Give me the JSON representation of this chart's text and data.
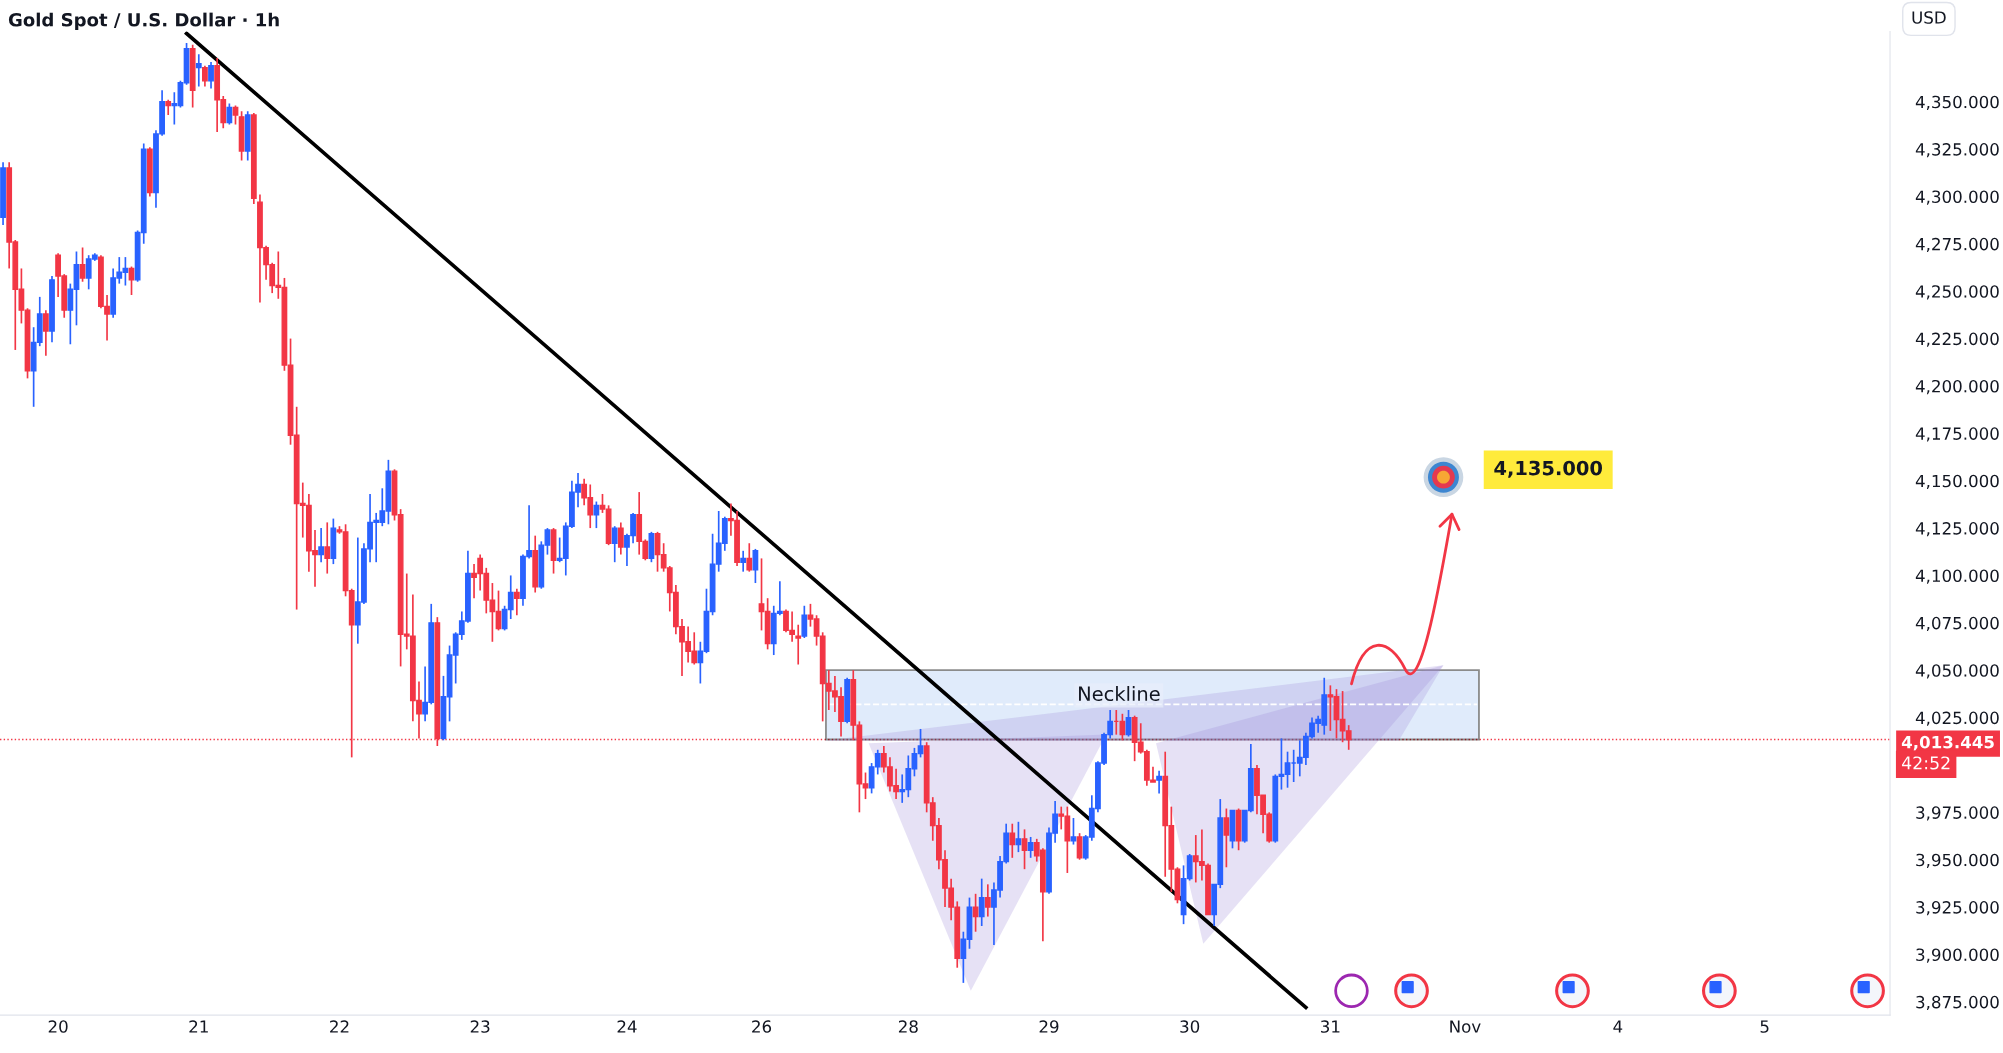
{
  "chart_data": {
    "type": "candlestick",
    "title": "Gold Spot / U.S. Dollar · 1h",
    "ylabel": "USD",
    "colors": [
      "#2962ff",
      "#f23645",
      "#f23645",
      "#f23645",
      "#f23645",
      "#2962ff",
      "#2962ff",
      "#f23645",
      "#2962ff",
      "#f23645",
      "#f23645",
      "#2962ff",
      "#2962ff",
      "#f23645",
      "#2962ff",
      "#2962ff",
      "#f23645",
      "#f23645",
      "#2962ff",
      "#2962ff",
      "#2962ff",
      "#f23645",
      "#2962ff",
      "#2962ff",
      "#f23645",
      "#2962ff",
      "#2962ff",
      "#f23645",
      "#2962ff",
      "#2962ff",
      "#2962ff",
      "#f23645",
      "#2962ff",
      "#f23645",
      "#2962ff",
      "#f23645",
      "#f23645",
      "#2962ff",
      "#f23645",
      "#f23645",
      "#2962ff",
      "#f23645",
      "#f23645",
      "#f23645",
      "#f23645",
      "#f23645",
      "#f23645",
      "#f23645",
      "#f23645",
      "#f23645",
      "#f23645",
      "#f23645",
      "#2962ff",
      "#f23645",
      "#2962ff",
      "#f23645",
      "#f23645",
      "#f23645",
      "#2962ff",
      "#2962ff",
      "#2962ff",
      "#2962ff",
      "#2962ff",
      "#2962ff",
      "#f23645",
      "#f23645",
      "#f23645",
      "#f23645",
      "#f23645",
      "#2962ff",
      "#2962ff",
      "#f23645",
      "#2962ff",
      "#2962ff",
      "#2962ff",
      "#2962ff",
      "#2962ff",
      "#f23645",
      "#f23645",
      "#f23645",
      "#f23645",
      "#f23645",
      "#2962ff",
      "#2962ff",
      "#f23645",
      "#2962ff",
      "#2962ff",
      "#f23645",
      "#2962ff",
      "#2962ff",
      "#f23645",
      "#2962ff",
      "#2962ff",
      "#2962ff",
      "#2962ff",
      "#f23645",
      "#f23645",
      "#2962ff",
      "#f23645",
      "#f23645",
      "#2962ff",
      "#f23645",
      "#2962ff",
      "#2962ff",
      "#f23645",
      "#f23645",
      "#2962ff",
      "#f23645",
      "#f23645",
      "#f23645",
      "#f23645",
      "#f23645",
      "#f23645",
      "#f23645",
      "#2962ff",
      "#2962ff",
      "#2962ff",
      "#2962ff",
      "#2962ff",
      "#f23645",
      "#f23645",
      "#2962ff",
      "#f23645",
      "#2962ff",
      "#f23645",
      "#f23645",
      "#2962ff",
      "#2962ff",
      "#f23645",
      "#f23645",
      "#f23645",
      "#2962ff",
      "#f23645",
      "#f23645",
      "#f23645",
      "#f23645",
      "#f23645",
      "#f23645",
      "#2962ff",
      "#f23645",
      "#f23645",
      "#f23645",
      "#2962ff",
      "#2962ff",
      "#f23645",
      "#f23645",
      "#f23645",
      "#2962ff",
      "#2962ff",
      "#2962ff",
      "#2962ff",
      "#f23645",
      "#f23645",
      "#f23645",
      "#f23645",
      "#f23645",
      "#f23645",
      "#2962ff",
      "#2962ff",
      "#f23645",
      "#2962ff",
      "#f23645",
      "#2962ff",
      "#2962ff",
      "#2962ff",
      "#f23645",
      "#2962ff",
      "#f23645",
      "#2962ff",
      "#f23645",
      "#f23645",
      "#2962ff",
      "#2962ff",
      "#f23645",
      "#f23645",
      "#2962ff",
      "#f23645",
      "#2962ff",
      "#2962ff",
      "#2962ff",
      "#2962ff",
      "#2962ff",
      "#f23645",
      "#f23645",
      "#2962ff",
      "#f23645",
      "#f23645",
      "#f23645",
      "#f23645",
      "#2962ff",
      "#f23645",
      "#f23645",
      "#f23645",
      "#2962ff",
      "#2962ff",
      "#f23645",
      "#f23645",
      "#f23645",
      "#2962ff",
      "#2962ff",
      "#f23645",
      "#2962ff",
      "#f23645",
      "#2962ff",
      "#2962ff",
      "#f23645",
      "#f23645",
      "#f23645",
      "#2962ff",
      "#2962ff",
      "#2962ff",
      "#2962ff",
      "#2962ff",
      "#2962ff",
      "#2962ff",
      "#2962ff",
      "#2962ff",
      "#f23645",
      "#f23645",
      "#f23645",
      "#f23645",
      null,
      null,
      null,
      null,
      null,
      null,
      null,
      null,
      null,
      null,
      null,
      null,
      null,
      null,
      null,
      null,
      null,
      null,
      null,
      null,
      null,
      null,
      null,
      null,
      null,
      null,
      null,
      null,
      null,
      null,
      null,
      null,
      null,
      null,
      null,
      null,
      null,
      null,
      null,
      null,
      null,
      null,
      null,
      null,
      null,
      null,
      null,
      null,
      null,
      null,
      null,
      null,
      null,
      null,
      null,
      null,
      null,
      null,
      null,
      null,
      null,
      null,
      null,
      null,
      null,
      null,
      null,
      null,
      null,
      null,
      null,
      null,
      null,
      null,
      null,
      null,
      null,
      null,
      null,
      null,
      null,
      null,
      null,
      null,
      null,
      null,
      null,
      null
    ],
    "categories": [
      null,
      null,
      null,
      null,
      null,
      null,
      null,
      null,
      null,
      "20",
      null,
      null,
      null,
      null,
      null,
      null,
      null,
      null,
      null,
      null,
      null,
      null,
      null,
      null,
      null,
      null,
      null,
      null,
      null,
      null,
      null,
      null,
      "21",
      null,
      null,
      null,
      null,
      null,
      null,
      null,
      null,
      null,
      null,
      null,
      null,
      null,
      null,
      null,
      null,
      null,
      null,
      null,
      null,
      null,
      null,
      "22",
      null,
      null,
      null,
      null,
      null,
      null,
      null,
      null,
      null,
      null,
      null,
      null,
      null,
      null,
      null,
      null,
      null,
      null,
      null,
      null,
      null,
      null,
      "23",
      null,
      null,
      null,
      null,
      null,
      null,
      null,
      null,
      null,
      null,
      null,
      null,
      null,
      null,
      null,
      null,
      null,
      null,
      null,
      null,
      null,
      null,
      null,
      "24",
      null,
      null,
      null,
      null,
      null,
      null,
      null,
      null,
      null,
      null,
      null,
      null,
      null,
      null,
      null,
      null,
      null,
      null,
      null,
      null,
      null,
      "26",
      null,
      null,
      null,
      null,
      null,
      null,
      null,
      null,
      null,
      null,
      null,
      null,
      null,
      null,
      null,
      null,
      null,
      null,
      null,
      null,
      null,
      null,
      null,
      "28",
      null,
      null,
      null,
      null,
      null,
      null,
      null,
      null,
      null,
      null,
      null,
      null,
      null,
      null,
      null,
      null,
      null,
      null,
      null,
      null,
      null,
      null,
      "29",
      null,
      null,
      null,
      null,
      null,
      null,
      null,
      null,
      null,
      null,
      null,
      null,
      null,
      null,
      null,
      null,
      null,
      null,
      null,
      null,
      null,
      null,
      "30",
      null,
      null,
      null,
      null,
      null,
      null,
      null,
      null,
      null,
      null,
      null,
      null,
      null,
      null,
      null,
      null,
      null,
      null,
      null,
      null,
      null,
      null,
      "31",
      null,
      null,
      null,
      null,
      null,
      null,
      null,
      null,
      null,
      null,
      null,
      null,
      null,
      null,
      null,
      null,
      null,
      null,
      null,
      null,
      null,
      "Nov",
      null,
      null,
      null,
      null,
      null,
      null,
      null,
      null,
      null,
      null,
      null,
      null,
      null,
      null,
      null,
      null,
      null,
      null,
      null,
      null,
      null,
      null,
      null,
      null,
      "4",
      null,
      null,
      null,
      null,
      null,
      null,
      null,
      null,
      null,
      null,
      null,
      null,
      null,
      null,
      null,
      null,
      null,
      null,
      null,
      null,
      null,
      null,
      null,
      "5",
      null,
      null,
      null,
      null,
      null,
      null,
      null,
      null,
      null,
      null,
      null,
      null,
      null,
      null,
      null,
      null,
      null,
      null,
      null,
      null
    ],
    "ohlc": [
      [
        4289,
        4318,
        4285,
        4315
      ],
      [
        4315,
        4318,
        4262,
        4276
      ],
      [
        4276,
        4277,
        4219,
        4251
      ],
      [
        4251,
        4262,
        4233,
        4240
      ],
      [
        4240,
        4241,
        4204,
        4208
      ],
      [
        4208,
        4231,
        4189,
        4223
      ],
      [
        4223,
        4247,
        4221,
        4238
      ],
      [
        4238,
        4240,
        4216,
        4229
      ],
      [
        4229,
        4258,
        4223,
        4256
      ],
      [
        4269,
        4270,
        4247,
        4258
      ],
      [
        4258,
        4259,
        4236,
        4240
      ],
      [
        4240,
        4254,
        4222,
        4251
      ],
      [
        4251,
        4271,
        4232,
        4264
      ],
      [
        4264,
        4273,
        4255,
        4257
      ],
      [
        4257,
        4269,
        4251,
        4267
      ],
      [
        4267,
        4270,
        4266,
        4269
      ],
      [
        4268,
        4269,
        4241,
        4242
      ],
      [
        4242,
        4248,
        4224,
        4238
      ],
      [
        4238,
        4262,
        4236,
        4257
      ],
      [
        4257,
        4268,
        4254,
        4260
      ],
      [
        4260,
        4268,
        4253,
        4262
      ],
      [
        4262,
        4263,
        4248,
        4256
      ],
      [
        4256,
        4282,
        4255,
        4281
      ],
      [
        4281,
        4328,
        4275,
        4325
      ],
      [
        4325,
        4326,
        4300,
        4302
      ],
      [
        4302,
        4335,
        4294,
        4333
      ],
      [
        4333,
        4356,
        4332,
        4350
      ],
      [
        4350,
        4351,
        4343,
        4348
      ],
      [
        4348,
        4355,
        4338,
        4349
      ],
      [
        4348,
        4361,
        4347,
        4360
      ],
      [
        4360,
        4381,
        4359,
        4378
      ],
      [
        4378,
        4380,
        4347,
        4356
      ],
      [
        4368,
        4375,
        4358,
        4370
      ],
      [
        4368,
        4369,
        4358,
        4361
      ],
      [
        4361,
        4371,
        4357,
        4369
      ],
      [
        4369,
        4373,
        4334,
        4351
      ],
      [
        4351,
        4353,
        4336,
        4339
      ],
      [
        4339,
        4349,
        4338,
        4347
      ],
      [
        4347,
        4348,
        4338,
        4343
      ],
      [
        4342,
        4345,
        4319,
        4324
      ],
      [
        4324,
        4345,
        4319,
        4343
      ],
      [
        4343,
        4344,
        4296,
        4299
      ],
      [
        4297,
        4301,
        4244,
        4273
      ],
      [
        4273,
        4274,
        4256,
        4264
      ],
      [
        4264,
        4265,
        4249,
        4253
      ],
      [
        4253,
        4271,
        4246,
        4252
      ],
      [
        4252,
        4257,
        4208,
        4211
      ],
      [
        4211,
        4225,
        4169,
        4174
      ],
      [
        4174,
        4189,
        4082,
        4138
      ],
      [
        4138,
        4149,
        4120,
        4137
      ],
      [
        4137,
        4143,
        4102,
        4113
      ],
      [
        4113,
        4124,
        4094,
        4111
      ],
      [
        4111,
        4125,
        4107,
        4115
      ],
      [
        4115,
        4128,
        4101,
        4109
      ],
      [
        4109,
        4130,
        4106,
        4125
      ],
      [
        4124,
        4126,
        4122,
        4123
      ],
      [
        4123,
        4127,
        4089,
        4092
      ],
      [
        4092,
        4093,
        4004,
        4074
      ],
      [
        4074,
        4120,
        4064,
        4086
      ],
      [
        4086,
        4117,
        4085,
        4114
      ],
      [
        4114,
        4143,
        4107,
        4128
      ],
      [
        4128,
        4133,
        4107,
        4129
      ],
      [
        4128,
        4146,
        4126,
        4134
      ],
      [
        4134,
        4161,
        4127,
        4155
      ],
      [
        4155,
        4156,
        4129,
        4132
      ],
      [
        4132,
        4135,
        4052,
        4069
      ],
      [
        4069,
        4101,
        4061,
        4068
      ],
      [
        4068,
        4090,
        4023,
        4034
      ],
      [
        4034,
        4044,
        4014,
        4027
      ],
      [
        4027,
        4052,
        4023,
        4033
      ],
      [
        4033,
        4085,
        4032,
        4075
      ],
      [
        4075,
        4078,
        4010,
        4014
      ],
      [
        4014,
        4047,
        4013,
        4036
      ],
      [
        4036,
        4063,
        4023,
        4058
      ],
      [
        4058,
        4070,
        4043,
        4069
      ],
      [
        4069,
        4081,
        4066,
        4076
      ],
      [
        4076,
        4113,
        4075,
        4101
      ],
      [
        4101,
        4106,
        4088,
        4099
      ],
      [
        4109,
        4111,
        4092,
        4101
      ],
      [
        4101,
        4104,
        4080,
        4087
      ],
      [
        4087,
        4096,
        4065,
        4081
      ],
      [
        4081,
        4092,
        4071,
        4072
      ],
      [
        4072,
        4084,
        4071,
        4082
      ],
      [
        4082,
        4100,
        4077,
        4091
      ],
      [
        4091,
        4093,
        4079,
        4088
      ],
      [
        4088,
        4111,
        4084,
        4110
      ],
      [
        4110,
        4137,
        4109,
        4113
      ],
      [
        4113,
        4121,
        4091,
        4094
      ],
      [
        4094,
        4118,
        4093,
        4116
      ],
      [
        4116,
        4125,
        4111,
        4124
      ],
      [
        4124,
        4125,
        4101,
        4108
      ],
      [
        4108,
        4120,
        4107,
        4109
      ],
      [
        4109,
        4128,
        4100,
        4126
      ],
      [
        4126,
        4150,
        4125,
        4144
      ],
      [
        4144,
        4154,
        4136,
        4148
      ],
      [
        4148,
        4151,
        4137,
        4141
      ],
      [
        4141,
        4148,
        4125,
        4132
      ],
      [
        4132,
        4139,
        4125,
        4137
      ],
      [
        4137,
        4143,
        4133,
        4135
      ],
      [
        4135,
        4137,
        4116,
        4117
      ],
      [
        4117,
        4126,
        4107,
        4125
      ],
      [
        4125,
        4128,
        4111,
        4115
      ],
      [
        4115,
        4122,
        4105,
        4121
      ],
      [
        4121,
        4133,
        4117,
        4132
      ],
      [
        4132,
        4144,
        4111,
        4118
      ],
      [
        4118,
        4119,
        4108,
        4109
      ],
      [
        4109,
        4123,
        4107,
        4122
      ],
      [
        4122,
        4123,
        4102,
        4111
      ],
      [
        4111,
        4117,
        4102,
        4104
      ],
      [
        4104,
        4105,
        4081,
        4091
      ],
      [
        4091,
        4095,
        4069,
        4073
      ],
      [
        4073,
        4077,
        4047,
        4065
      ],
      [
        4065,
        4073,
        4054,
        4060
      ],
      [
        4060,
        4070,
        4053,
        4054
      ],
      [
        4054,
        4065,
        4043,
        4060
      ],
      [
        4060,
        4093,
        4059,
        4081
      ],
      [
        4081,
        4122,
        4079,
        4106
      ],
      [
        4106,
        4134,
        4102,
        4117
      ],
      [
        4117,
        4131,
        4113,
        4130
      ],
      [
        4130,
        4138,
        4121,
        4129
      ],
      [
        4129,
        4134,
        4105,
        4107
      ],
      [
        4107,
        4113,
        4102,
        4109
      ],
      [
        4109,
        4117,
        4102,
        4103
      ],
      [
        4103,
        4114,
        4096,
        4113
      ],
      [
        4085,
        4109,
        4071,
        4081
      ],
      [
        4081,
        4088,
        4061,
        4064
      ],
      [
        4064,
        4084,
        4058,
        4080
      ],
      [
        4080,
        4097,
        4079,
        4081
      ],
      [
        4081,
        4082,
        4070,
        4071
      ],
      [
        4071,
        4081,
        4065,
        4069
      ],
      [
        4068,
        4074,
        4053,
        4067
      ],
      [
        4068,
        4084,
        4067,
        4079
      ],
      [
        4079,
        4085,
        4073,
        4077
      ],
      [
        4077,
        4079,
        4063,
        4068
      ],
      [
        4068,
        4070,
        4023,
        4043
      ],
      [
        4043,
        4050,
        4029,
        4039
      ],
      [
        4039,
        4047,
        4028,
        4036
      ],
      [
        4036,
        4041,
        4015,
        4023
      ],
      [
        4023,
        4046,
        4022,
        4045
      ],
      [
        4045,
        4050,
        4013,
        4021
      ],
      [
        4021,
        4023,
        3975,
        3990
      ],
      [
        3990,
        3996,
        3982,
        3988
      ],
      [
        3988,
        4001,
        3985,
        3999
      ],
      [
        3999,
        4008,
        3995,
        4006
      ],
      [
        4006,
        4010,
        3996,
        3999
      ],
      [
        3999,
        4004,
        3986,
        3989
      ],
      [
        3989,
        3998,
        3982,
        3986
      ],
      [
        3986,
        3995,
        3980,
        3987
      ],
      [
        3987,
        4005,
        3983,
        3998
      ],
      [
        3998,
        4009,
        3994,
        4006
      ],
      [
        4006,
        4019,
        4004,
        4010
      ],
      [
        4010,
        4012,
        3975,
        3980
      ],
      [
        3980,
        3983,
        3960,
        3968
      ],
      [
        3968,
        3972,
        3945,
        3950
      ],
      [
        3950,
        3955,
        3925,
        3935
      ],
      [
        3935,
        3940,
        3918,
        3925
      ],
      [
        3925,
        3928,
        3893,
        3898
      ],
      [
        3898,
        3912,
        3885,
        3908
      ],
      [
        3908,
        3930,
        3903,
        3925
      ],
      [
        3925,
        3932,
        3912,
        3920
      ],
      [
        3920,
        3940,
        3915,
        3930
      ],
      [
        3930,
        3937,
        3920,
        3925
      ],
      [
        3925,
        3938,
        3905,
        3934
      ],
      [
        3934,
        3952,
        3930,
        3949
      ],
      [
        3949,
        3969,
        3948,
        3964
      ],
      [
        3964,
        3969,
        3951,
        3958
      ],
      [
        3958,
        3970,
        3954,
        3961
      ],
      [
        3961,
        3966,
        3945,
        3955
      ],
      [
        3955,
        3962,
        3951,
        3959
      ],
      [
        3959,
        3961,
        3949,
        3952
      ],
      [
        3955,
        3956,
        3907,
        3933
      ],
      [
        3933,
        3967,
        3932,
        3964
      ],
      [
        3964,
        3981,
        3959,
        3974
      ],
      [
        3974,
        3978,
        3966,
        3973
      ],
      [
        3973,
        3978,
        3943,
        3960
      ],
      [
        3960,
        3972,
        3958,
        3962
      ],
      [
        3962,
        3964,
        3950,
        3951
      ],
      [
        3951,
        3963,
        3950,
        3962
      ],
      [
        3962,
        3984,
        3960,
        3977
      ],
      [
        3977,
        4002,
        3975,
        4001
      ],
      [
        4001,
        4017,
        4000,
        4016
      ],
      [
        4016,
        4029,
        4014,
        4023
      ],
      [
        4023,
        4029,
        4016,
        4023
      ],
      [
        4023,
        4027,
        4013,
        4016
      ],
      [
        4016,
        4029,
        4015,
        4025
      ],
      [
        4025,
        4026,
        4002,
        4012
      ],
      [
        4012,
        4022,
        4006,
        4007
      ],
      [
        4007,
        4008,
        3989,
        3992
      ],
      [
        3992,
        3999,
        3991,
        3991
      ],
      [
        3992,
        3997,
        3985,
        3994
      ],
      [
        3994,
        4007,
        3941,
        3968
      ],
      [
        3968,
        3978,
        3933,
        3945
      ],
      [
        3945,
        3946,
        3927,
        3929
      ],
      [
        3921,
        3947,
        3916,
        3940
      ],
      [
        3940,
        3953,
        3939,
        3952
      ],
      [
        3952,
        3963,
        3938,
        3949
      ],
      [
        3949,
        3966,
        3939,
        3947
      ],
      [
        3947,
        3948,
        3921,
        3921
      ],
      [
        3921,
        3937,
        3915,
        3937
      ],
      [
        3937,
        3982,
        3935,
        3972
      ],
      [
        3972,
        3977,
        3946,
        3963
      ],
      [
        3960,
        3976,
        3956,
        3976
      ],
      [
        3976,
        3977,
        3955,
        3960
      ],
      [
        3960,
        3976,
        3959,
        3976
      ],
      [
        3976,
        4011,
        3975,
        3998
      ],
      [
        3998,
        4000,
        3974,
        3984
      ],
      [
        3984,
        3984,
        3964,
        3974
      ],
      [
        3974,
        3975,
        3959,
        3960
      ],
      [
        3960,
        3995,
        3959,
        3994
      ],
      [
        3994,
        4014,
        3987,
        3995
      ],
      [
        3995,
        4007,
        3988,
        4001
      ],
      [
        4001,
        4008,
        3991,
        4001
      ],
      [
        4001,
        4013,
        3994,
        4004
      ],
      [
        4004,
        4017,
        4000,
        4015
      ],
      [
        4015,
        4025,
        4014,
        4022
      ],
      [
        4022,
        4026,
        4017,
        4024
      ],
      [
        4021,
        4046,
        4016,
        4037
      ],
      [
        4037,
        4042,
        4018,
        4036
      ],
      [
        4036,
        4040,
        4014,
        4024
      ],
      [
        4024,
        4039,
        4012,
        4018
      ],
      [
        4018,
        4021,
        4008,
        4013.445
      ],
      null,
      null,
      null,
      null,
      null,
      null,
      null,
      null,
      null,
      null,
      null,
      null,
      null,
      null,
      null,
      null,
      null,
      null,
      null,
      null,
      null,
      null,
      null,
      null,
      null,
      null,
      null,
      null,
      null,
      null,
      null,
      null,
      null,
      null,
      null,
      null,
      null,
      null,
      null,
      null,
      null,
      null,
      null,
      null,
      null,
      null,
      null,
      null,
      null,
      null,
      null,
      null,
      null,
      null,
      null,
      null,
      null,
      null,
      null,
      null,
      null,
      null,
      null,
      null,
      null,
      null,
      null,
      null,
      null,
      null,
      null,
      null,
      null,
      null,
      null,
      null,
      null,
      null,
      null,
      null,
      null,
      null,
      null,
      null,
      null,
      null,
      null,
      null
    ],
    "series": [
      {
        "type": "line",
        "color": "#000000",
        "line_style": "solid",
        "values": [
          null,
          null,
          null,
          null,
          null,
          null,
          null,
          null,
          null,
          null,
          null,
          null,
          null,
          null,
          null,
          null,
          null,
          null,
          null,
          null,
          null,
          null,
          null,
          null,
          null,
          null,
          null,
          null,
          null,
          null,
          4386,
          null,
          null,
          null,
          null,
          null,
          null,
          null,
          null,
          null,
          null,
          null,
          null,
          null,
          null,
          null,
          null,
          null,
          null,
          null,
          null,
          null,
          null,
          null,
          null,
          null,
          null,
          null,
          null,
          null,
          null,
          null,
          null,
          null,
          null,
          null,
          null,
          null,
          null,
          null,
          null,
          null,
          null,
          null,
          null,
          null,
          null,
          null,
          null,
          null,
          null,
          null,
          null,
          null,
          null,
          null,
          null,
          null,
          null,
          null,
          null,
          null,
          null,
          null,
          null,
          null,
          null,
          null,
          null,
          null,
          null,
          null,
          null,
          null,
          null,
          null,
          null,
          null,
          null,
          null,
          null,
          null,
          null,
          null,
          null,
          null,
          null,
          null,
          null,
          null,
          null,
          null,
          null,
          null,
          null,
          null,
          null,
          null,
          null,
          null,
          null,
          null,
          null,
          null,
          null,
          null,
          null,
          null,
          null,
          null,
          null,
          null,
          null,
          null,
          null,
          null,
          null,
          null,
          null,
          null,
          null,
          null,
          null,
          null,
          null,
          null,
          null,
          null,
          null,
          null,
          null,
          null,
          null,
          null,
          null,
          null,
          null,
          null,
          null,
          null,
          null,
          null,
          null,
          null,
          null,
          null,
          null,
          null,
          null,
          null,
          null,
          null,
          null,
          null,
          null,
          null,
          null,
          null,
          null,
          null,
          null,
          null,
          null,
          null,
          null,
          null,
          null,
          null,
          null,
          null,
          null,
          null,
          null,
          null,
          null,
          null,
          null,
          null,
          null,
          null,
          null,
          null,
          null,
          3872,
          null,
          null,
          null,
          null,
          null,
          null,
          null,
          null,
          null,
          null,
          null,
          null,
          null,
          null,
          null,
          null,
          null,
          null,
          null,
          null,
          null,
          null,
          null,
          null,
          null,
          null,
          null,
          null,
          null,
          null,
          null,
          null,
          null,
          null,
          null,
          null,
          null,
          null,
          null,
          null,
          null,
          null,
          null,
          null,
          null,
          null,
          null,
          null,
          null,
          null,
          null,
          null,
          null,
          null,
          null,
          null,
          null,
          null,
          null,
          null,
          null,
          null,
          null,
          null,
          null,
          null,
          null,
          null,
          null,
          null,
          null,
          null,
          null,
          null,
          null,
          null,
          null,
          null,
          null,
          null,
          null,
          null,
          null,
          null,
          null,
          null,
          null,
          null,
          null,
          null,
          null,
          null,
          null,
          null,
          null
        ]
      },
      {
        "type": "line",
        "color": "#ffffff",
        "line_style": "dashed",
        "values": [
          null,
          null,
          null,
          null,
          null,
          null,
          null,
          null,
          null,
          null,
          null,
          null,
          null,
          null,
          null,
          null,
          null,
          null,
          null,
          null,
          null,
          null,
          null,
          null,
          null,
          null,
          null,
          null,
          null,
          null,
          null,
          null,
          null,
          null,
          null,
          null,
          null,
          null,
          null,
          null,
          null,
          null,
          null,
          null,
          null,
          null,
          null,
          null,
          null,
          null,
          null,
          null,
          null,
          null,
          null,
          null,
          null,
          null,
          null,
          null,
          null,
          null,
          null,
          null,
          null,
          null,
          null,
          null,
          null,
          null,
          null,
          null,
          null,
          null,
          null,
          null,
          null,
          null,
          null,
          null,
          null,
          null,
          null,
          null,
          null,
          null,
          null,
          null,
          null,
          null,
          null,
          null,
          null,
          null,
          null,
          null,
          null,
          null,
          null,
          null,
          null,
          null,
          null,
          null,
          null,
          null,
          null,
          null,
          null,
          null,
          null,
          null,
          null,
          null,
          null,
          null,
          null,
          null,
          null,
          null,
          null,
          null,
          null,
          null,
          null,
          null,
          null,
          null,
          null,
          null,
          null,
          null,
          null,
          null,
          null,
          4032,
          null,
          null,
          null,
          null,
          null,
          null,
          null,
          null,
          null,
          null,
          null,
          null,
          null,
          null,
          null,
          null,
          null,
          null,
          null,
          null,
          null,
          null,
          null,
          null,
          null,
          null,
          null,
          null,
          null,
          null,
          null,
          null,
          null,
          null,
          null,
          null,
          null,
          null,
          null,
          null,
          null,
          null,
          null,
          null,
          null,
          null,
          null,
          null,
          null,
          null,
          null,
          null,
          null,
          null,
          null,
          null,
          null,
          null,
          null,
          null,
          null,
          null,
          null,
          null,
          null,
          null,
          null,
          null,
          null,
          null,
          null,
          null,
          null,
          null,
          null,
          null,
          null,
          null,
          null,
          null,
          null,
          null,
          null,
          null,
          null,
          null,
          null,
          null,
          null,
          null,
          null,
          null,
          null,
          null,
          null,
          null,
          null,
          null,
          null,
          null,
          null,
          null,
          null,
          null,
          null,
          4032,
          null,
          null,
          null,
          null,
          null,
          null,
          null,
          null,
          null,
          null,
          null,
          null,
          null,
          null,
          null,
          null,
          null,
          null,
          null,
          null,
          null,
          null,
          null,
          null,
          null,
          null,
          null,
          null,
          null,
          null,
          null,
          null,
          null,
          null,
          null,
          null,
          null,
          null,
          null,
          null,
          null,
          null,
          null,
          null,
          null,
          null,
          null,
          null,
          null,
          null,
          null,
          null,
          null,
          null,
          null,
          null,
          null,
          null,
          null,
          null,
          null,
          null,
          null,
          null,
          null,
          null,
          null
        ]
      }
    ],
    "ylim": [
      3868,
      4387
    ],
    "yticks": [
      {
        "value": 3875,
        "label": "3,875.000"
      },
      {
        "value": 3900,
        "label": "3,900.000"
      },
      {
        "value": 3925,
        "label": "3,925.000"
      },
      {
        "value": 3950,
        "label": "3,950.000"
      },
      {
        "value": 3975,
        "label": "3,975.000"
      },
      {
        "value": 4025,
        "label": "4,025.000"
      },
      {
        "value": 4050,
        "label": "4,050.000"
      },
      {
        "value": 4075,
        "label": "4,075.000"
      },
      {
        "value": 4100,
        "label": "4,100.000"
      },
      {
        "value": 4125,
        "label": "4,125.000"
      },
      {
        "value": 4150,
        "label": "4,150.000"
      },
      {
        "value": 4175,
        "label": "4,175.000"
      },
      {
        "value": 4200,
        "label": "4,200.000"
      },
      {
        "value": 4225,
        "label": "4,225.000"
      },
      {
        "value": 4250,
        "label": "4,250.000"
      },
      {
        "value": 4275,
        "label": "4,275.000"
      },
      {
        "value": 4300,
        "label": "4,300.000"
      },
      {
        "value": 4325,
        "label": "4,325.000"
      },
      {
        "value": 4350,
        "label": "4,350.000"
      }
    ],
    "ref_lines": [
      {
        "axis": "y",
        "value": 4013.445,
        "label": "4,013.445",
        "color": "#f23645",
        "line_style": "dotted"
      }
    ],
    "bands": [
      {
        "axis": "y",
        "from": 4013.445,
        "to": 4050,
        "label": "Neckline",
        "color": "#bbd4f7"
      }
    ],
    "annotations": [
      "42:52",
      "4,135.000"
    ],
    "grid": false,
    "legend": false
  }
}
